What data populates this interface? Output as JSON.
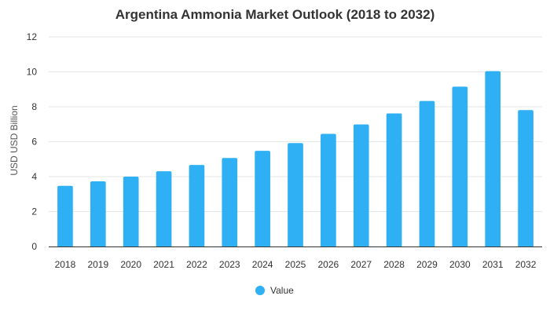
{
  "chart_data": {
    "type": "bar",
    "title": "Argentina Ammonia Market Outlook (2018 to 2032)",
    "xlabel": "",
    "ylabel": "USD USD Billion",
    "ylim": [
      0,
      12
    ],
    "yticks": [
      0,
      2,
      4,
      6,
      8,
      10,
      12
    ],
    "categories": [
      "2018",
      "2019",
      "2020",
      "2021",
      "2022",
      "2023",
      "2024",
      "2025",
      "2026",
      "2027",
      "2028",
      "2029",
      "2030",
      "2031",
      "2032"
    ],
    "series": [
      {
        "name": "Value",
        "color": "#2fb0f4",
        "values": [
          3.47,
          3.73,
          4.0,
          4.31,
          4.67,
          5.07,
          5.48,
          5.92,
          6.45,
          6.99,
          7.62,
          8.33,
          9.15,
          10.04,
          7.81
        ]
      }
    ],
    "grid": true,
    "legend_position": "bottom-center"
  }
}
